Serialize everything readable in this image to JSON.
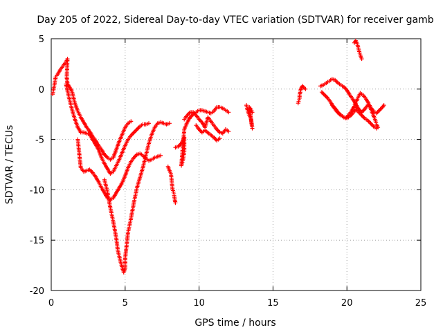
{
  "chart_data": {
    "type": "scatter",
    "title": "Day 205 of 2022, Sidereal Day-to-day VTEC variation (SDTVAR) for receiver gamb",
    "xlabel": "GPS time / hours",
    "ylabel": "SDTVAR / TECUs",
    "xlim": [
      0,
      25
    ],
    "ylim": [
      -20,
      5
    ],
    "xticks": [
      "0",
      "5",
      "10",
      "15",
      "20",
      "25"
    ],
    "yticks": [
      "5",
      "0",
      "-5",
      "-10",
      "-15",
      "-20"
    ],
    "grid": true,
    "marker": "plus",
    "color": "#ff0000",
    "series": [
      {
        "points": [
          [
            0.1,
            -0.5
          ],
          [
            0.2,
            0.3
          ],
          [
            0.3,
            1.2
          ],
          [
            0.45,
            1.5
          ],
          [
            0.6,
            1.9
          ],
          [
            0.8,
            2.3
          ],
          [
            1.0,
            2.7
          ],
          [
            1.1,
            3.0
          ],
          [
            1.05,
            1.2
          ],
          [
            1.1,
            0.5
          ],
          [
            1.2,
            0.3
          ],
          [
            1.4,
            -0.2
          ],
          [
            1.6,
            -1.4
          ],
          [
            1.8,
            -2.2
          ],
          [
            2.0,
            -2.8
          ],
          [
            2.2,
            -3.3
          ],
          [
            2.4,
            -3.8
          ],
          [
            2.6,
            -4.2
          ],
          [
            2.8,
            -4.7
          ],
          [
            3.0,
            -5.1
          ],
          [
            3.2,
            -5.6
          ],
          [
            3.4,
            -6.0
          ],
          [
            3.6,
            -6.5
          ],
          [
            3.8,
            -6.8
          ],
          [
            4.0,
            -7.0
          ],
          [
            4.2,
            -6.8
          ],
          [
            4.4,
            -6.0
          ],
          [
            4.6,
            -5.2
          ],
          [
            4.8,
            -4.5
          ],
          [
            5.0,
            -3.8
          ],
          [
            5.2,
            -3.4
          ],
          [
            5.4,
            -3.2
          ]
        ]
      },
      {
        "points": [
          [
            1.0,
            0.5
          ],
          [
            1.2,
            -0.8
          ],
          [
            1.4,
            -2.0
          ],
          [
            1.6,
            -3.0
          ],
          [
            1.8,
            -3.8
          ],
          [
            2.0,
            -4.3
          ],
          [
            2.2,
            -4.3
          ],
          [
            2.4,
            -4.4
          ],
          [
            2.6,
            -4.5
          ],
          [
            2.8,
            -5.0
          ],
          [
            3.0,
            -5.5
          ],
          [
            3.2,
            -6.0
          ],
          [
            3.4,
            -6.8
          ],
          [
            3.6,
            -7.4
          ],
          [
            3.8,
            -7.9
          ],
          [
            4.0,
            -8.4
          ],
          [
            4.2,
            -8.2
          ],
          [
            4.4,
            -7.6
          ],
          [
            4.6,
            -7.0
          ],
          [
            4.8,
            -6.3
          ],
          [
            5.0,
            -5.6
          ],
          [
            5.2,
            -5.0
          ],
          [
            5.4,
            -4.6
          ],
          [
            5.6,
            -4.3
          ],
          [
            5.8,
            -4.0
          ],
          [
            6.0,
            -3.7
          ],
          [
            6.2,
            -3.5
          ],
          [
            6.4,
            -3.5
          ],
          [
            6.6,
            -3.4
          ]
        ]
      },
      {
        "points": [
          [
            1.8,
            -5.0
          ],
          [
            1.9,
            -6.5
          ],
          [
            2.0,
            -7.8
          ],
          [
            2.2,
            -8.2
          ],
          [
            2.4,
            -8.1
          ],
          [
            2.6,
            -8.0
          ],
          [
            2.8,
            -8.3
          ],
          [
            3.0,
            -8.7
          ],
          [
            3.2,
            -9.2
          ],
          [
            3.4,
            -9.8
          ],
          [
            3.6,
            -10.3
          ],
          [
            3.8,
            -10.8
          ],
          [
            4.0,
            -11.0
          ],
          [
            4.2,
            -10.8
          ],
          [
            4.4,
            -10.3
          ],
          [
            4.6,
            -9.8
          ],
          [
            4.8,
            -9.3
          ],
          [
            5.0,
            -8.6
          ],
          [
            5.2,
            -7.8
          ],
          [
            5.4,
            -7.2
          ],
          [
            5.6,
            -6.8
          ],
          [
            5.8,
            -6.5
          ],
          [
            6.0,
            -6.4
          ],
          [
            6.2,
            -6.6
          ],
          [
            6.4,
            -6.9
          ],
          [
            6.6,
            -7.1
          ],
          [
            6.8,
            -7.0
          ],
          [
            7.0,
            -6.8
          ],
          [
            7.2,
            -6.7
          ],
          [
            7.4,
            -6.6
          ]
        ]
      },
      {
        "points": [
          [
            3.6,
            -9.0
          ],
          [
            3.8,
            -10.2
          ],
          [
            4.0,
            -11.8
          ],
          [
            4.2,
            -13.2
          ],
          [
            4.4,
            -14.8
          ],
          [
            4.5,
            -16.0
          ],
          [
            4.7,
            -17.2
          ],
          [
            4.9,
            -18.2
          ],
          [
            5.0,
            -17.8
          ],
          [
            5.0,
            -16.8
          ],
          [
            5.1,
            -15.5
          ],
          [
            5.2,
            -14.2
          ],
          [
            5.4,
            -12.8
          ],
          [
            5.6,
            -11.2
          ],
          [
            5.8,
            -9.8
          ],
          [
            6.0,
            -8.8
          ],
          [
            6.2,
            -7.8
          ],
          [
            6.4,
            -6.6
          ],
          [
            6.6,
            -5.4
          ],
          [
            6.8,
            -4.5
          ],
          [
            7.0,
            -3.8
          ],
          [
            7.2,
            -3.4
          ],
          [
            7.4,
            -3.3
          ],
          [
            7.6,
            -3.4
          ],
          [
            7.8,
            -3.5
          ],
          [
            8.0,
            -3.4
          ]
        ]
      },
      {
        "points": [
          [
            7.9,
            -7.7
          ],
          [
            8.0,
            -8.1
          ],
          [
            8.1,
            -8.4
          ],
          [
            8.2,
            -9.9
          ],
          [
            8.3,
            -10.4
          ],
          [
            8.35,
            -10.9
          ],
          [
            8.4,
            -11.3
          ]
        ]
      },
      {
        "points": [
          [
            8.4,
            -5.8
          ],
          [
            8.6,
            -5.7
          ],
          [
            8.8,
            -5.4
          ],
          [
            9.0,
            -4.8
          ],
          [
            9.0,
            -6.2
          ],
          [
            8.9,
            -7.1
          ],
          [
            8.8,
            -7.6
          ],
          [
            9.0,
            -4.0
          ],
          [
            9.2,
            -3.3
          ],
          [
            9.4,
            -2.8
          ],
          [
            9.6,
            -2.5
          ],
          [
            9.8,
            -2.3
          ],
          [
            10.0,
            -2.1
          ],
          [
            10.2,
            -2.1
          ],
          [
            10.4,
            -2.2
          ],
          [
            10.6,
            -2.3
          ],
          [
            10.8,
            -2.4
          ],
          [
            11.0,
            -2.2
          ],
          [
            11.2,
            -1.8
          ],
          [
            11.4,
            -1.8
          ],
          [
            11.6,
            -1.9
          ],
          [
            11.8,
            -2.1
          ],
          [
            12.0,
            -2.3
          ]
        ]
      },
      {
        "points": [
          [
            9.0,
            -3.0
          ],
          [
            9.2,
            -2.6
          ],
          [
            9.4,
            -2.3
          ],
          [
            9.6,
            -2.3
          ],
          [
            9.8,
            -2.6
          ],
          [
            10.0,
            -3.0
          ],
          [
            10.2,
            -3.3
          ],
          [
            10.4,
            -3.8
          ],
          [
            10.6,
            -2.8
          ],
          [
            10.8,
            -3.2
          ],
          [
            11.0,
            -3.6
          ],
          [
            11.2,
            -4.0
          ],
          [
            11.4,
            -4.3
          ],
          [
            11.6,
            -4.4
          ],
          [
            11.8,
            -4.0
          ],
          [
            12.0,
            -4.2
          ]
        ]
      },
      {
        "points": [
          [
            9.8,
            -3.6
          ],
          [
            10.0,
            -4.0
          ],
          [
            10.2,
            -4.3
          ],
          [
            10.4,
            -4.1
          ],
          [
            11.0,
            -4.8
          ],
          [
            11.2,
            -5.1
          ],
          [
            11.4,
            -4.9
          ]
        ]
      },
      {
        "points": [
          [
            13.2,
            -1.6
          ],
          [
            13.3,
            -2.2
          ],
          [
            13.4,
            -2.6
          ],
          [
            13.5,
            -2.9
          ],
          [
            13.55,
            -3.4
          ],
          [
            13.6,
            -3.9
          ],
          [
            13.4,
            -1.8
          ],
          [
            13.5,
            -2.0
          ],
          [
            13.6,
            -2.3
          ]
        ]
      },
      {
        "points": [
          [
            16.7,
            -1.4
          ],
          [
            16.8,
            -0.9
          ],
          [
            16.8,
            -0.6
          ],
          [
            16.9,
            0.1
          ],
          [
            17.0,
            0.3
          ],
          [
            17.1,
            0.1
          ],
          [
            17.2,
            0.0
          ]
        ]
      },
      {
        "points": [
          [
            18.2,
            0.3
          ],
          [
            18.4,
            0.4
          ],
          [
            18.6,
            0.6
          ],
          [
            18.8,
            0.8
          ],
          [
            19.0,
            1.0
          ],
          [
            19.2,
            0.9
          ],
          [
            19.4,
            0.6
          ],
          [
            19.6,
            0.4
          ],
          [
            19.8,
            0.2
          ],
          [
            20.0,
            -0.1
          ],
          [
            20.2,
            -0.6
          ],
          [
            20.4,
            -1.0
          ],
          [
            20.6,
            -1.5
          ],
          [
            20.8,
            -2.0
          ],
          [
            21.0,
            -2.3
          ],
          [
            21.2,
            -2.0
          ],
          [
            21.4,
            -1.6
          ],
          [
            21.6,
            -1.8
          ],
          [
            21.8,
            -2.2
          ],
          [
            22.0,
            -2.4
          ],
          [
            22.2,
            -2.1
          ],
          [
            22.4,
            -1.8
          ],
          [
            22.5,
            -1.6
          ]
        ]
      },
      {
        "points": [
          [
            18.3,
            -0.3
          ],
          [
            18.5,
            -0.6
          ],
          [
            18.7,
            -0.9
          ],
          [
            18.9,
            -1.3
          ],
          [
            19.1,
            -1.8
          ],
          [
            19.3,
            -2.2
          ],
          [
            19.5,
            -2.5
          ],
          [
            19.7,
            -2.7
          ],
          [
            19.9,
            -2.9
          ],
          [
            20.1,
            -2.6
          ],
          [
            20.3,
            -2.2
          ],
          [
            20.5,
            -1.7
          ],
          [
            20.7,
            -1.0
          ],
          [
            20.9,
            -0.4
          ],
          [
            21.1,
            -0.6
          ],
          [
            21.3,
            -1.0
          ],
          [
            21.5,
            -1.5
          ],
          [
            21.7,
            -2.3
          ],
          [
            21.9,
            -3.0
          ],
          [
            22.0,
            -3.5
          ],
          [
            22.1,
            -3.8
          ]
        ]
      },
      {
        "points": [
          [
            19.0,
            -1.6
          ],
          [
            19.2,
            -1.9
          ],
          [
            19.4,
            -2.3
          ],
          [
            19.6,
            -2.6
          ],
          [
            19.8,
            -2.8
          ],
          [
            20.0,
            -2.9
          ],
          [
            20.2,
            -2.7
          ],
          [
            20.4,
            -2.4
          ],
          [
            20.6,
            -2.0
          ],
          [
            20.8,
            -2.3
          ],
          [
            21.0,
            -2.6
          ],
          [
            21.2,
            -2.9
          ],
          [
            21.4,
            -3.1
          ],
          [
            21.6,
            -3.4
          ],
          [
            21.8,
            -3.7
          ],
          [
            22.0,
            -3.9
          ]
        ]
      },
      {
        "points": [
          [
            20.5,
            4.6
          ],
          [
            20.6,
            4.8
          ],
          [
            20.7,
            4.5
          ],
          [
            20.8,
            3.9
          ],
          [
            20.9,
            3.4
          ],
          [
            21.0,
            3.0
          ]
        ]
      }
    ]
  }
}
